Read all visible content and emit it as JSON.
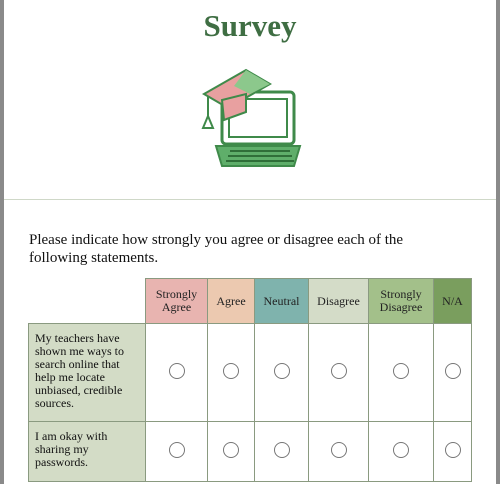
{
  "header": {
    "title": "Survey"
  },
  "instructions": "Please indicate how strongly you agree or disagree each of the following statements.",
  "table": {
    "columns": [
      "Strongly Agree",
      "Agree",
      "Neutral",
      "Disagree",
      "Strongly Disagree",
      "N/A"
    ],
    "rows": [
      "My teachers have shown me ways to search online that help me locate unbiased, credible sources.",
      "I am okay with sharing my passwords."
    ]
  }
}
